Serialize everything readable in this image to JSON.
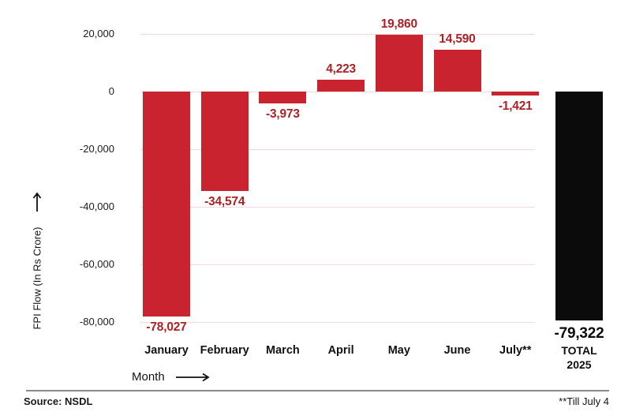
{
  "chart_data": {
    "type": "bar",
    "title": "",
    "xlabel": "Month",
    "ylabel": "FPI Flow (In Rs Crore)",
    "categories": [
      "January",
      "February",
      "March",
      "April",
      "May",
      "June",
      "July**"
    ],
    "values": [
      -78027,
      -34574,
      -3973,
      4223,
      19860,
      14590,
      -1421
    ],
    "value_labels": [
      "-78,027",
      "-34,574",
      "-3,973",
      "4,223",
      "19,860",
      "14,590",
      "-1,421"
    ],
    "total": {
      "value": -79322,
      "value_label": "-79,322",
      "category_line1": "TOTAL",
      "category_line2": "2025"
    },
    "y_ticks": [
      {
        "value": 20000,
        "label": "20,000"
      },
      {
        "value": 0,
        "label": "0"
      },
      {
        "value": -20000,
        "label": "-20,000"
      },
      {
        "value": -40000,
        "label": "-40,000"
      },
      {
        "value": -60000,
        "label": "-60,000"
      },
      {
        "value": -80000,
        "label": "-80,000"
      }
    ],
    "ylim": [
      -86000,
      24000
    ],
    "grid": true,
    "legend": "none",
    "colors": {
      "bar": "#c8232e",
      "bar_total": "#0b0b0b",
      "value_label": "#ad2026",
      "total_label": "#0b0b0b",
      "gridline": "#f3dada"
    }
  },
  "footer": {
    "source": "Source: NSDL",
    "footnote": "**Till July 4"
  }
}
